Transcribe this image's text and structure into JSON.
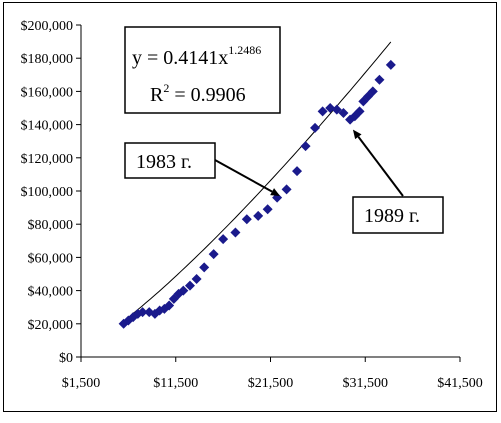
{
  "chart_data": {
    "type": "scatter",
    "title": "",
    "xlabel": "",
    "ylabel": "",
    "xlim": [
      1500,
      41500
    ],
    "ylim": [
      0,
      200000
    ],
    "x_ticks": [
      1500,
      11500,
      21500,
      31500,
      41500
    ],
    "x_tick_labels": [
      "$1,500",
      "$11,500",
      "$21,500",
      "$31,500",
      "$41,500"
    ],
    "y_ticks": [
      0,
      20000,
      40000,
      60000,
      80000,
      100000,
      120000,
      140000,
      160000,
      180000,
      200000
    ],
    "y_tick_labels": [
      "$0",
      "$20,000",
      "$40,000",
      "$60,000",
      "$80,000",
      "$100,000",
      "$120,000",
      "$140,000",
      "$160,000",
      "$180,000",
      "$200,000"
    ],
    "grid": false,
    "legend": "none",
    "marker_color": "#1a1a8c",
    "points": [
      {
        "x": 6000,
        "y": 20000
      },
      {
        "x": 6500,
        "y": 22000
      },
      {
        "x": 7000,
        "y": 24000
      },
      {
        "x": 7500,
        "y": 26000
      },
      {
        "x": 8000,
        "y": 27000
      },
      {
        "x": 8700,
        "y": 27000
      },
      {
        "x": 9300,
        "y": 26000
      },
      {
        "x": 9800,
        "y": 28000
      },
      {
        "x": 10300,
        "y": 29000
      },
      {
        "x": 10800,
        "y": 31000
      },
      {
        "x": 11300,
        "y": 35000
      },
      {
        "x": 11800,
        "y": 38000
      },
      {
        "x": 12300,
        "y": 40000
      },
      {
        "x": 13000,
        "y": 43000
      },
      {
        "x": 13700,
        "y": 47000
      },
      {
        "x": 14500,
        "y": 54000
      },
      {
        "x": 15500,
        "y": 62000
      },
      {
        "x": 16500,
        "y": 71000
      },
      {
        "x": 17800,
        "y": 75000
      },
      {
        "x": 19000,
        "y": 83000
      },
      {
        "x": 20200,
        "y": 85000
      },
      {
        "x": 21200,
        "y": 89000
      },
      {
        "x": 22200,
        "y": 96000
      },
      {
        "x": 23200,
        "y": 101000
      },
      {
        "x": 24300,
        "y": 112000
      },
      {
        "x": 25200,
        "y": 127000
      },
      {
        "x": 26200,
        "y": 138000
      },
      {
        "x": 27000,
        "y": 148000
      },
      {
        "x": 27800,
        "y": 150000
      },
      {
        "x": 28500,
        "y": 149000
      },
      {
        "x": 29200,
        "y": 147000
      },
      {
        "x": 29900,
        "y": 143000
      },
      {
        "x": 30400,
        "y": 145000
      },
      {
        "x": 30900,
        "y": 148000
      },
      {
        "x": 31300,
        "y": 154000
      },
      {
        "x": 31800,
        "y": 157000
      },
      {
        "x": 32300,
        "y": 160000
      },
      {
        "x": 33000,
        "y": 167000
      },
      {
        "x": 34200,
        "y": 176000
      }
    ],
    "trendline": {
      "type": "power",
      "coefficient": 0.4141,
      "exponent": 1.2486,
      "x_range": [
        6000,
        34200
      ]
    },
    "annotations": {
      "equation_lead": "y = 0.4141x",
      "equation_exp": "1.2486",
      "r2_lead": "R",
      "r2_exp": "2",
      "r2_tail": " = 0.9906",
      "label_1983": "1983 г.",
      "label_1989": "1989 г.",
      "target_1983": {
        "x": 22500,
        "y": 97000
      },
      "target_1989": {
        "x": 30200,
        "y": 137000
      }
    }
  }
}
